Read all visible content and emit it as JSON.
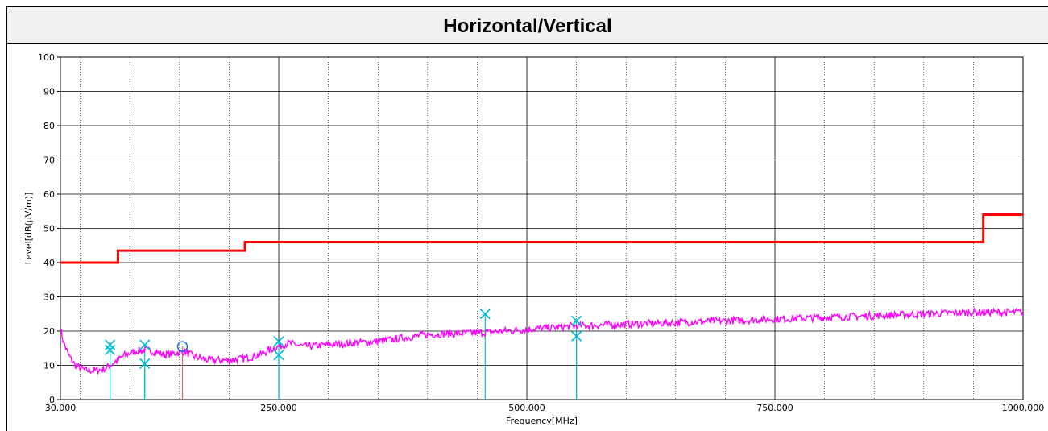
{
  "chart_data": {
    "type": "line",
    "title": "Horizontal/Vertical",
    "xlabel": "Frequency[MHz]",
    "ylabel": "Level[dB(µV/m)]",
    "xlim": [
      30,
      1000
    ],
    "ylim": [
      0,
      100
    ],
    "x_tick_labels": [
      "30.000",
      "250.000",
      "500.000",
      "750.000",
      "1000.000"
    ],
    "x_tick_values": [
      30,
      250,
      500,
      750,
      1000
    ],
    "y_tick_values": [
      0,
      10,
      20,
      30,
      40,
      50,
      60,
      70,
      80,
      90,
      100
    ],
    "grid": true,
    "limit_line": {
      "color": "#ff0000",
      "points": [
        [
          30,
          40
        ],
        [
          88,
          40
        ],
        [
          88,
          43.5
        ],
        [
          216,
          43.5
        ],
        [
          216,
          46
        ],
        [
          960,
          46
        ],
        [
          960,
          54
        ],
        [
          1000,
          54
        ]
      ]
    },
    "trace": {
      "color": "#ff00ff",
      "points": [
        [
          30,
          21
        ],
        [
          33,
          17
        ],
        [
          38,
          13
        ],
        [
          45,
          10
        ],
        [
          55,
          8.5
        ],
        [
          65,
          8.5
        ],
        [
          75,
          9
        ],
        [
          85,
          11
        ],
        [
          95,
          13
        ],
        [
          105,
          14
        ],
        [
          115,
          14.5
        ],
        [
          125,
          14
        ],
        [
          135,
          13
        ],
        [
          145,
          13.5
        ],
        [
          155,
          14
        ],
        [
          165,
          12.5
        ],
        [
          180,
          11.5
        ],
        [
          200,
          11.5
        ],
        [
          215,
          12
        ],
        [
          230,
          13
        ],
        [
          245,
          15
        ],
        [
          260,
          16.5
        ],
        [
          275,
          15.5
        ],
        [
          300,
          16
        ],
        [
          350,
          17
        ],
        [
          400,
          19
        ],
        [
          450,
          19.5
        ],
        [
          500,
          20.5
        ],
        [
          550,
          21.5
        ],
        [
          600,
          22
        ],
        [
          650,
          22.5
        ],
        [
          700,
          23
        ],
        [
          750,
          23.5
        ],
        [
          800,
          24
        ],
        [
          850,
          24.5
        ],
        [
          900,
          25
        ],
        [
          950,
          25.5
        ],
        [
          1000,
          25.5
        ]
      ]
    },
    "qp_markers": {
      "color": "#00bcd4",
      "points": [
        [
          80,
          16
        ],
        [
          80,
          14.5
        ],
        [
          115,
          16
        ],
        [
          115,
          10.5
        ],
        [
          250,
          17
        ],
        [
          250,
          13
        ],
        [
          458,
          25
        ],
        [
          550,
          23
        ],
        [
          550,
          18.5
        ]
      ]
    },
    "peak_marker": {
      "color": "#e06070",
      "circle_color": "#1060ff",
      "point": [
        153,
        15.5
      ]
    }
  }
}
